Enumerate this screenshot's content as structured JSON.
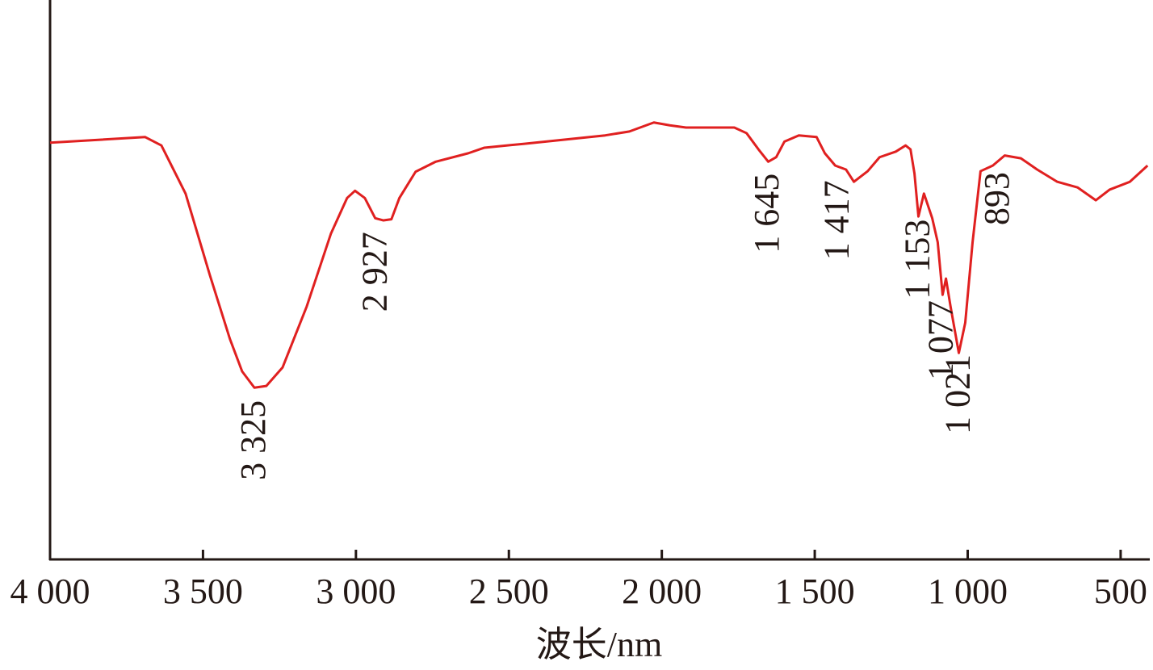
{
  "chart_data": {
    "type": "line",
    "xlabel": "波长/nm",
    "xlim": [
      4000,
      410
    ],
    "ylim": [
      0,
      100
    ],
    "xticks": [
      {
        "value": 4000,
        "label": "4 000"
      },
      {
        "value": 3500,
        "label": "3 500"
      },
      {
        "value": 3000,
        "label": "3 000"
      },
      {
        "value": 2500,
        "label": "2 500"
      },
      {
        "value": 2000,
        "label": "2 000"
      },
      {
        "value": 1500,
        "label": "1 500"
      },
      {
        "value": 1000,
        "label": "1 000"
      },
      500
    ],
    "x": [
      4000,
      3689,
      3636,
      3557,
      3478,
      3412,
      3372,
      3332,
      3293,
      3240,
      3161,
      3082,
      3029,
      3003,
      2971,
      2937,
      2910,
      2884,
      2858,
      2805,
      2739,
      2633,
      2580,
      2449,
      2185,
      2106,
      2026,
      1974,
      1921,
      1763,
      1723,
      1684,
      1652,
      1626,
      1599,
      1552,
      1494,
      1467,
      1433,
      1398,
      1372,
      1327,
      1288,
      1235,
      1203,
      1187,
      1174,
      1161,
      1143,
      1116,
      1098,
      1082,
      1071,
      1056,
      1029,
      1008,
      984,
      958,
      918,
      879,
      826,
      773,
      707,
      641,
      581,
      536,
      470,
      412
    ],
    "series": [
      {
        "color": "#e02020",
        "values": [
          74.5,
          75.5,
          74.0,
          65.4,
          50.9,
          39.4,
          33.6,
          30.7,
          31.0,
          34.3,
          45.2,
          58.2,
          64.6,
          65.9,
          64.6,
          61.0,
          60.6,
          60.8,
          64.6,
          69.3,
          71.1,
          72.6,
          73.6,
          74.3,
          75.8,
          76.5,
          78.1,
          77.6,
          77.2,
          77.2,
          76.2,
          73.3,
          71.1,
          71.9,
          74.7,
          75.8,
          75.5,
          72.6,
          70.4,
          69.7,
          67.5,
          69.4,
          71.9,
          72.9,
          74.0,
          73.3,
          69.0,
          61.3,
          65.4,
          61.0,
          56.7,
          47.3,
          50.2,
          45.2,
          36.9,
          42.3,
          56.7,
          69.4,
          70.4,
          72.2,
          71.7,
          69.7,
          67.5,
          66.5,
          64.2,
          66.1,
          67.5,
          70.4
        ]
      }
    ],
    "annotations": [
      {
        "x": 3325,
        "label": "3 325"
      },
      {
        "x": 2927,
        "label": "2 927"
      },
      {
        "x": 1645,
        "label": "1 645"
      },
      {
        "x": 1417,
        "label": "1 417"
      },
      {
        "x": 1153,
        "label": "1 153"
      },
      {
        "x": 1077,
        "label": "1 077"
      },
      {
        "x": 1021,
        "label": "1 021"
      },
      {
        "x": 893,
        "label": "893"
      }
    ]
  }
}
